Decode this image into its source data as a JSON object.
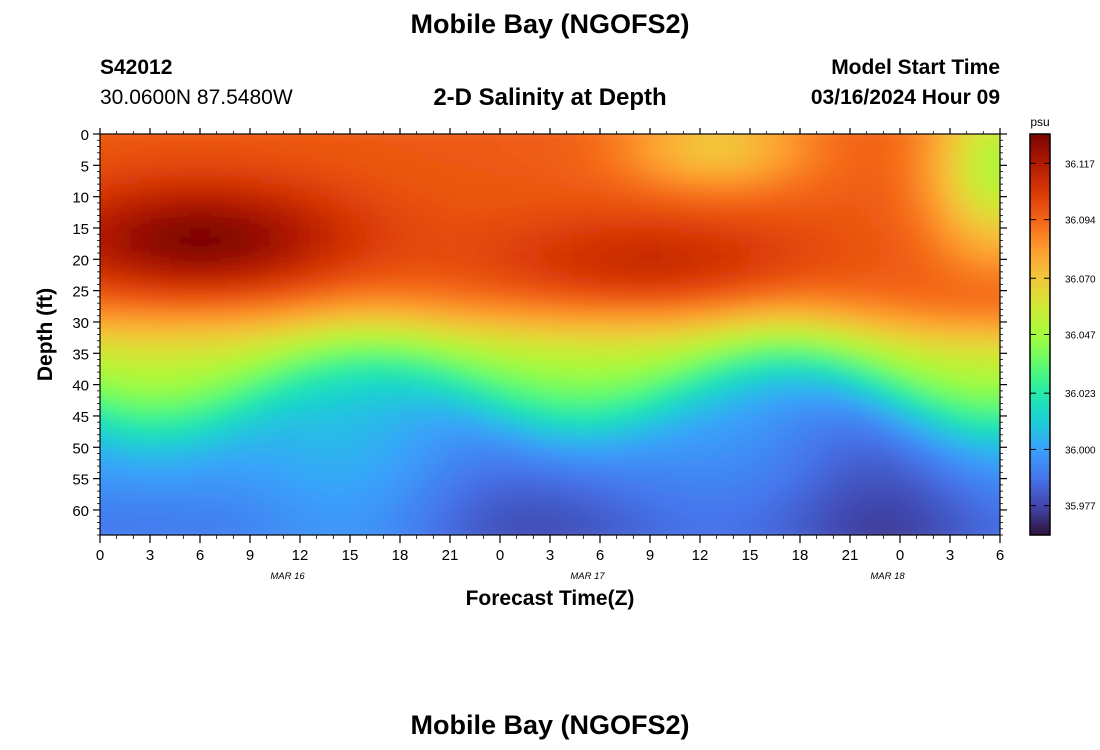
{
  "page": {
    "title": "Mobile Bay (NGOFS2)",
    "footer_title": "Mobile Bay (NGOFS2)",
    "station_id": "S42012",
    "station_coords": "30.0600N  87.5480W",
    "subtitle": "2-D Salinity at Depth",
    "model_start_label": "Model Start Time",
    "model_start_value": "03/16/2024 Hour 09"
  },
  "chart_data": {
    "type": "heatmap",
    "title": "2-D Salinity at Depth",
    "xlabel": "Forecast Time(Z)",
    "ylabel": "Depth (ft)",
    "x_tick_labels": [
      "0",
      "3",
      "6",
      "9",
      "12",
      "15",
      "18",
      "21",
      "0",
      "3",
      "6",
      "9",
      "12",
      "15",
      "18",
      "21",
      "0",
      "3",
      "6"
    ],
    "date_labels": [
      {
        "label": "MAR 16",
        "at_hours": 15
      },
      {
        "label": "MAR 17",
        "at_hours": 39
      },
      {
        "label": "MAR 18",
        "at_hours": 63
      }
    ],
    "xlim_hours": [
      0,
      54
    ],
    "y_ticks": [
      0,
      5,
      10,
      15,
      20,
      25,
      30,
      35,
      40,
      45,
      50,
      55,
      60
    ],
    "ylim_ft": [
      0,
      64
    ],
    "y_inverted": true,
    "colorbar": {
      "unit": "psu",
      "ticks": [
        36.117,
        36.094,
        36.07,
        36.047,
        36.023,
        36.0,
        35.977
      ],
      "range": [
        35.965,
        36.129
      ]
    },
    "grid": false
  },
  "colors": {
    "colormap": [
      "#30123b",
      "#4145ab",
      "#4675ed",
      "#39a2fc",
      "#1bcfd4",
      "#24eca6",
      "#61fc6c",
      "#a4fc3b",
      "#d1e834",
      "#f3c63a",
      "#fe9b2d",
      "#f36315",
      "#d93806",
      "#b11901",
      "#7a0402"
    ]
  }
}
